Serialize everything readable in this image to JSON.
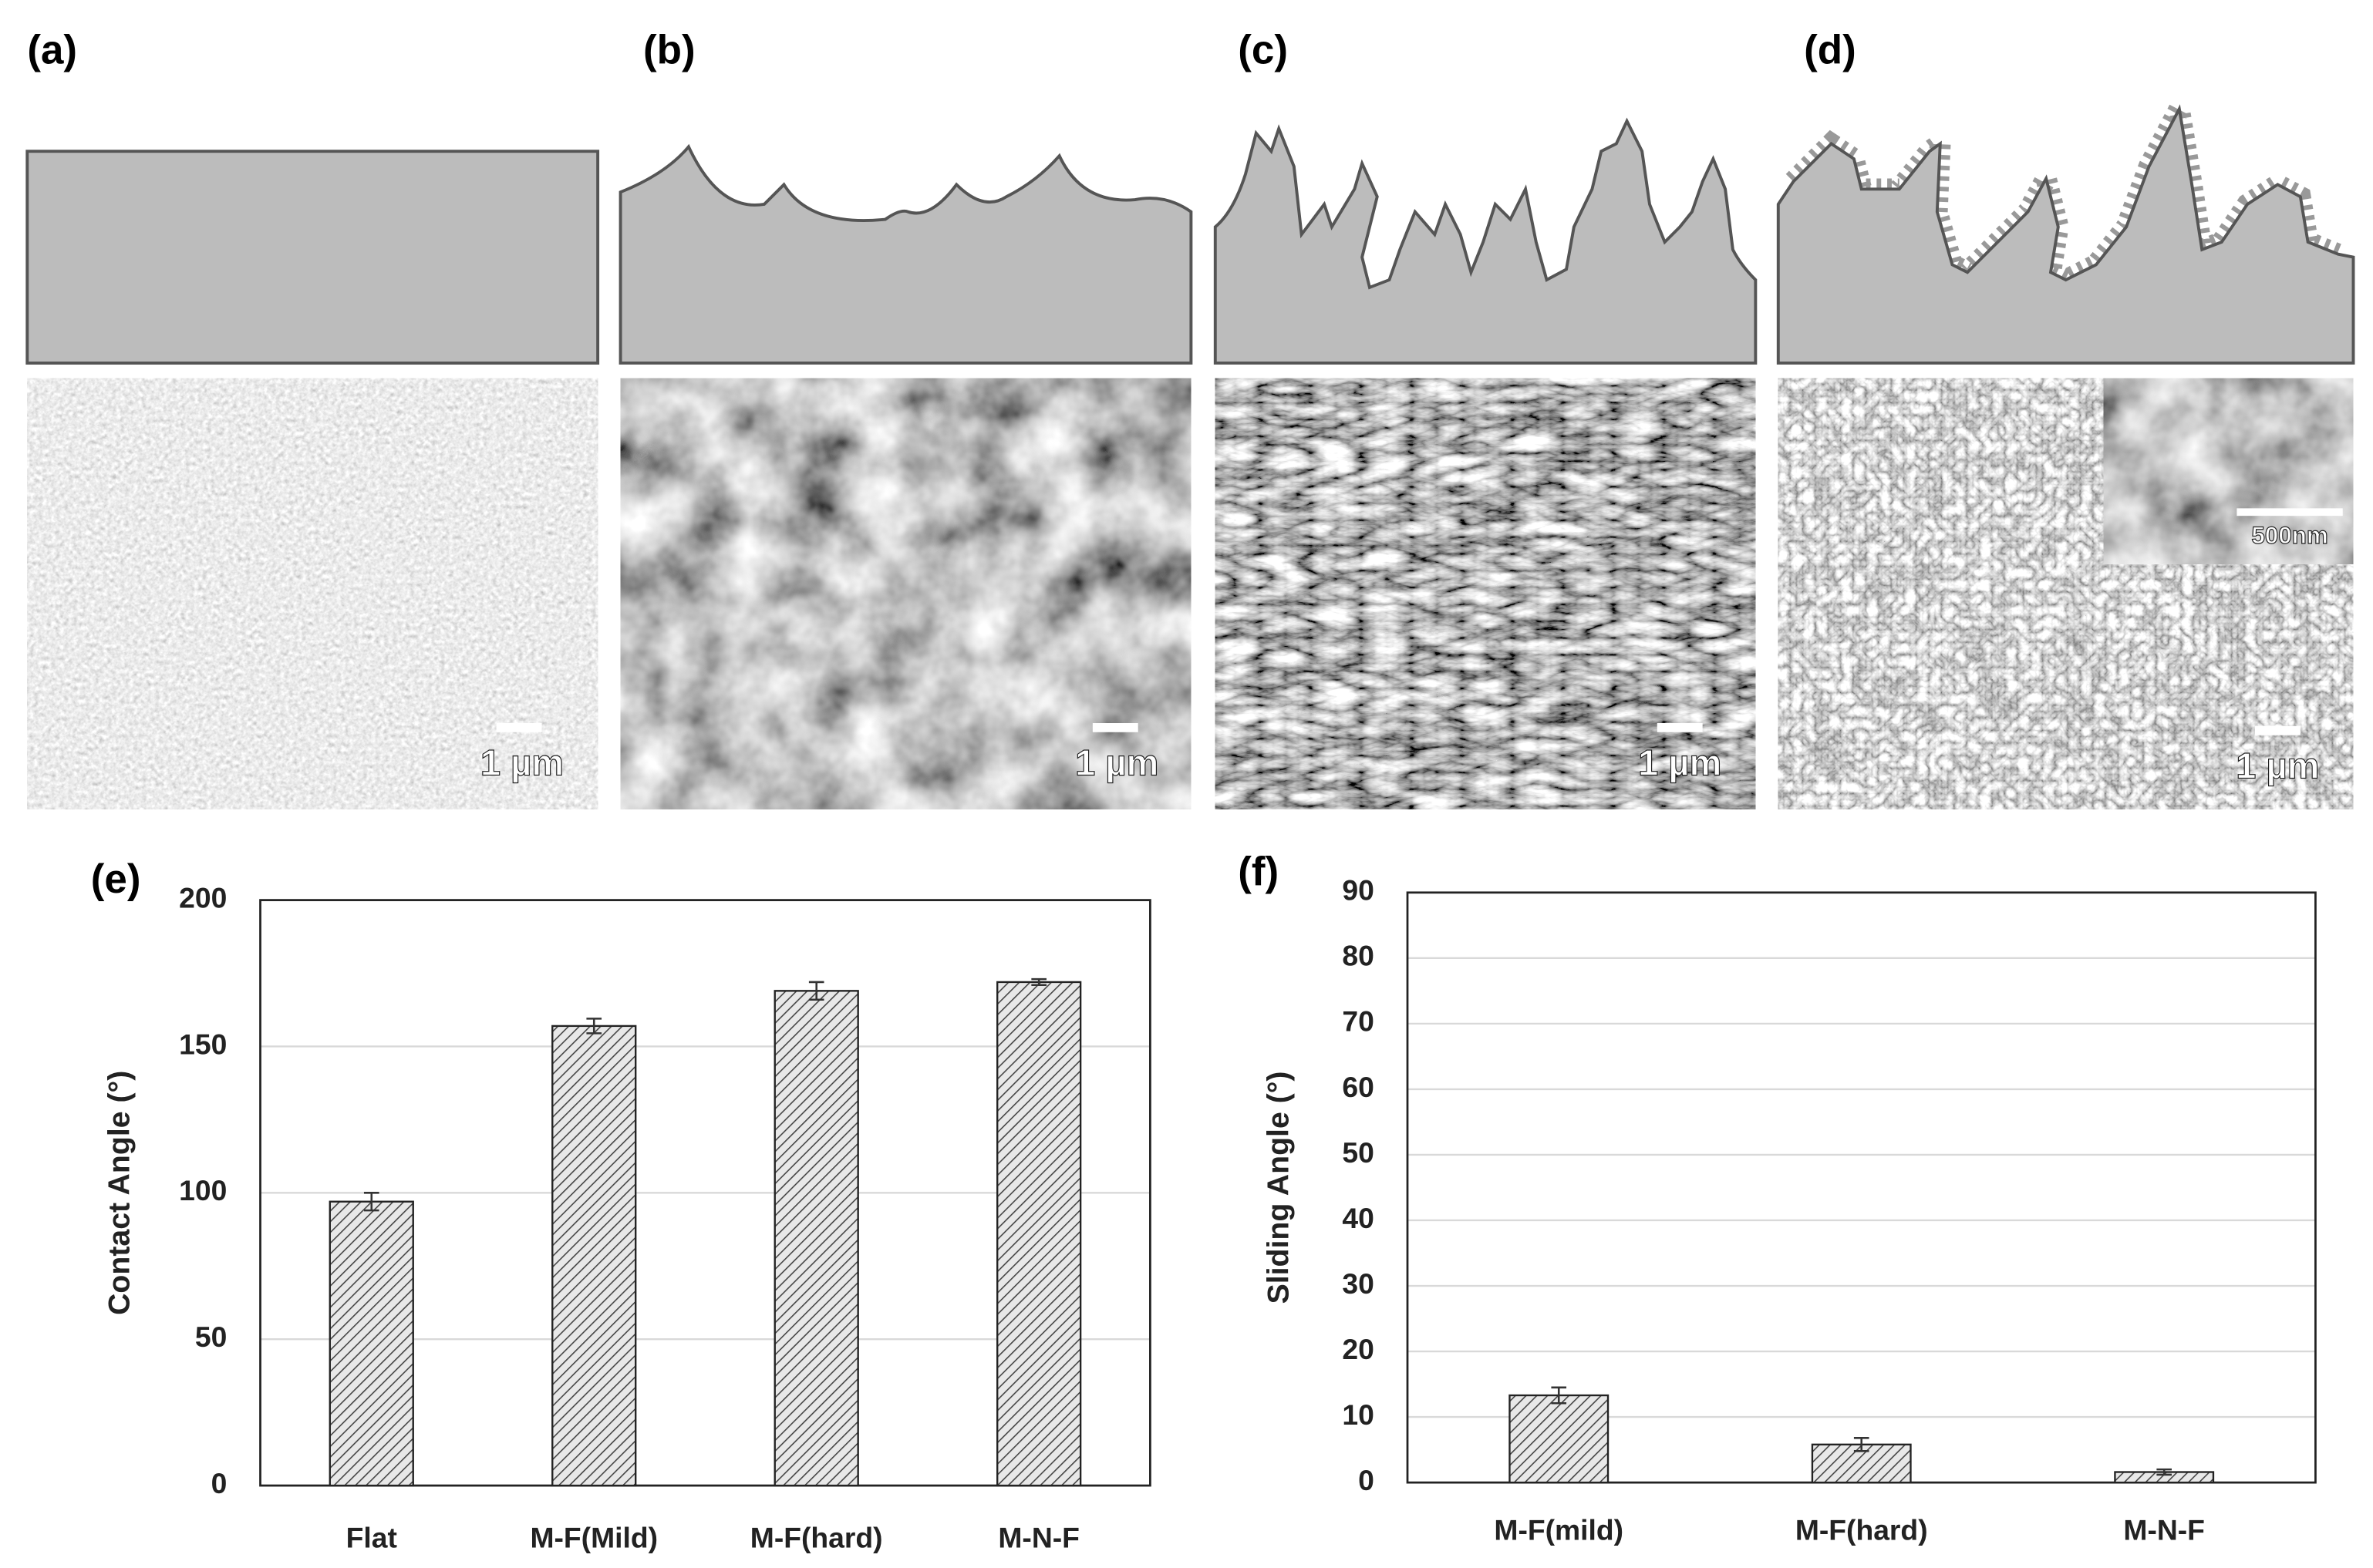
{
  "panels": [
    {
      "label": "(a)",
      "scale_bar": "1 µm"
    },
    {
      "label": "(b)",
      "scale_bar": "1 µm"
    },
    {
      "label": "(c)",
      "scale_bar": "1 µm"
    },
    {
      "label": "(d)",
      "scale_bar": "1 µm",
      "inset_scale_bar": "500nm"
    }
  ],
  "chart_data": [
    {
      "type": "bar",
      "panel_label": "(e)",
      "y_label": "Contact Angle (°)",
      "categories": [
        "Flat",
        "M-F(Mild)",
        "M-F(hard)",
        "M-N-F"
      ],
      "values": [
        97,
        157,
        169,
        172
      ],
      "errors": [
        3,
        2.5,
        3,
        1
      ],
      "ylim": [
        0,
        200
      ],
      "yticks": [
        0,
        50,
        100,
        150,
        200
      ],
      "grid": true
    },
    {
      "type": "bar",
      "panel_label": "(f)",
      "y_label": "Sliding Angle (°)",
      "categories": [
        "M-F(mild)",
        "M-F(hard)",
        "M-N-F"
      ],
      "values": [
        13.3,
        5.8,
        1.6
      ],
      "errors": [
        1.2,
        1,
        0.4
      ],
      "ylim": [
        0,
        90
      ],
      "yticks": [
        0,
        10,
        20,
        30,
        40,
        50,
        60,
        70,
        80,
        90
      ],
      "grid": true
    }
  ]
}
